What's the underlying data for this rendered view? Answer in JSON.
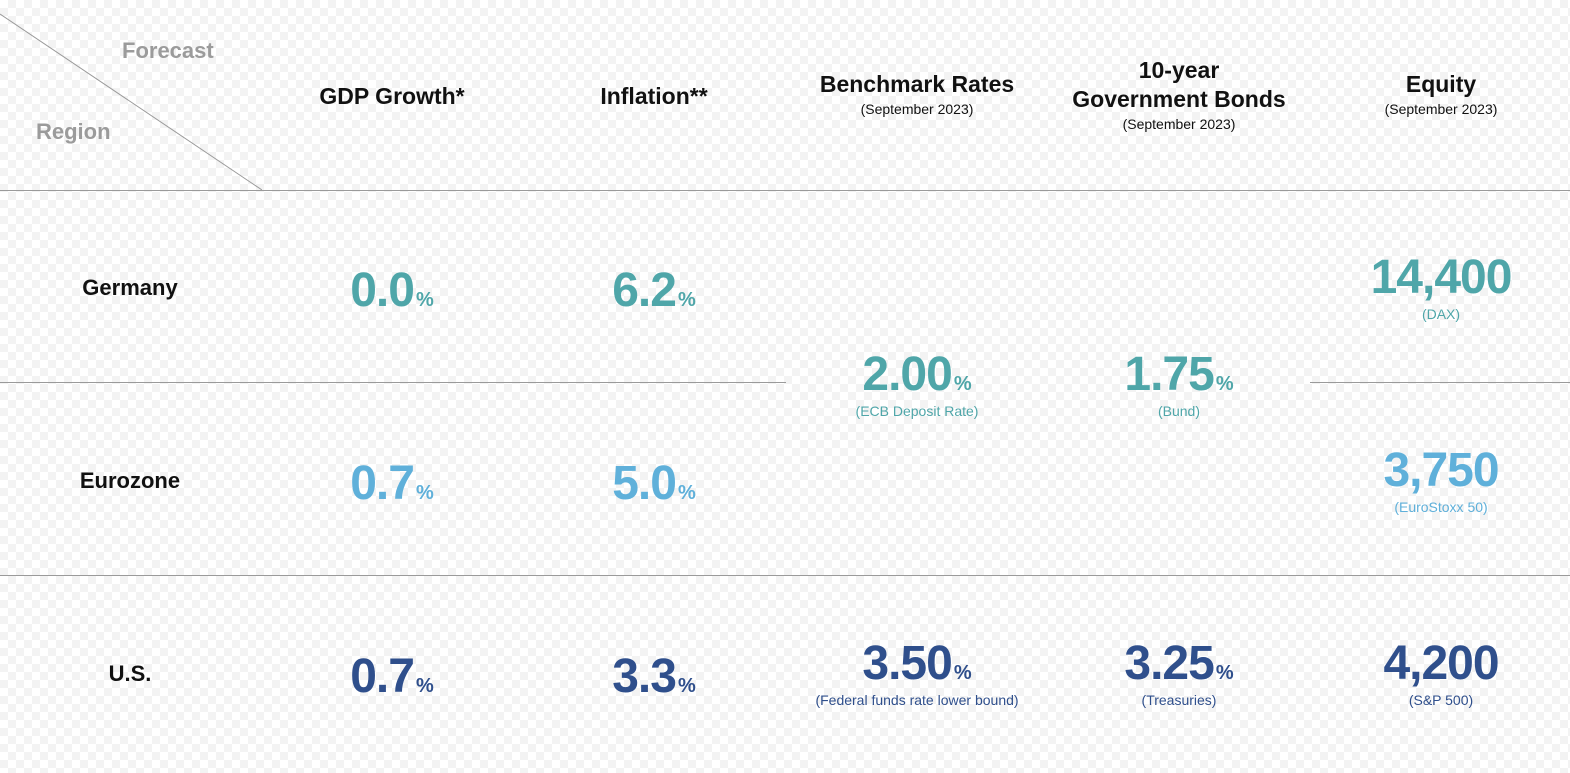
{
  "colors": {
    "germany": "#4fa6a9",
    "eurozone": "#5fb0da",
    "us": "#2f4f8c",
    "divider": "#9a9a9a"
  },
  "corner": {
    "forecast_label": "Forecast",
    "region_label": "Region"
  },
  "columns": {
    "gdp": {
      "title": "GDP Growth*"
    },
    "inflation": {
      "title": "Inflation**"
    },
    "benchmark": {
      "title": "Benchmark Rates",
      "sub": "(September 2023)"
    },
    "bonds": {
      "title_line1": "10-year",
      "title_line2": "Government Bonds",
      "sub": "(September 2023)"
    },
    "equity": {
      "title": "Equity",
      "sub": "(September 2023)"
    }
  },
  "rows": {
    "germany": {
      "label": "Germany",
      "gdp": "0.0",
      "inflation": "6.2",
      "equity": "14,400",
      "equity_note": "(DAX)"
    },
    "eurozone": {
      "label": "Eurozone",
      "gdp": "0.7",
      "inflation": "5.0",
      "equity": "3,750",
      "equity_note": "(EuroStoxx 50)"
    },
    "us": {
      "label": "U.S.",
      "gdp": "0.7",
      "inflation": "3.3",
      "benchmark": "3.50",
      "benchmark_note": "(Federal funds rate lower bound)",
      "bonds": "3.25",
      "bonds_note": "(Treasuries)",
      "equity": "4,200",
      "equity_note": "(S&P 500)"
    }
  },
  "euro_shared": {
    "benchmark": "2.00",
    "benchmark_note": "(ECB Deposit Rate)",
    "bonds": "1.75",
    "bonds_note": "(Bund)"
  },
  "percent_sign": "%"
}
